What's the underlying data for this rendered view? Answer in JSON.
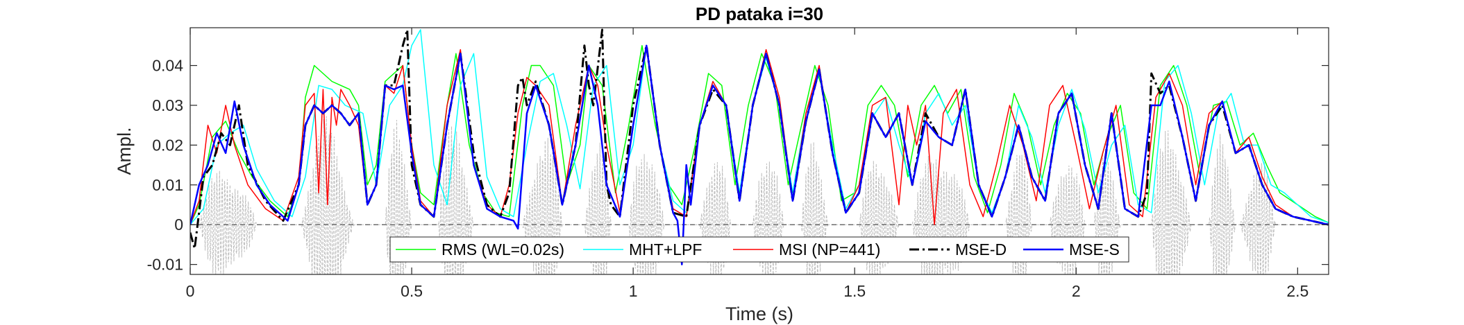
{
  "chart_data": {
    "type": "line",
    "title": "PD pataka i=30",
    "xlabel": "Time (s)",
    "ylabel": "Ampl.",
    "xlim": [
      0,
      2.57
    ],
    "ylim": [
      -0.0125,
      0.0495
    ],
    "xticks": [
      0,
      0.5,
      1,
      1.5,
      2,
      2.5
    ],
    "xtick_labels": [
      "0",
      "0.5",
      "1",
      "1.5",
      "2",
      "2.5"
    ],
    "yticks": [
      -0.01,
      0,
      0.01,
      0.02,
      0.03,
      0.04
    ],
    "ytick_labels": [
      "-0.01",
      "0",
      "0.01",
      "0.02",
      "0.03",
      "0.04"
    ],
    "grid": false,
    "legend_position": "bottom-center",
    "background_signal": {
      "name": "speech waveform",
      "color": "#bdbdbd",
      "style": "dashed",
      "note_segments": "syllable bursts oscillating around zero"
    },
    "series": [
      {
        "name": "RMS (WL=0.02s)",
        "color": "#00ff00",
        "style": "solid",
        "width": 1.5,
        "x": [
          0,
          0.02,
          0.05,
          0.08,
          0.11,
          0.14,
          0.18,
          0.22,
          0.245,
          0.26,
          0.28,
          0.3,
          0.32,
          0.34,
          0.36,
          0.38,
          0.4,
          0.42,
          0.44,
          0.46,
          0.48,
          0.5,
          0.52,
          0.55,
          0.58,
          0.6,
          0.63,
          0.66,
          0.69,
          0.72,
          0.75,
          0.77,
          0.79,
          0.82,
          0.85,
          0.88,
          0.9,
          0.93,
          0.96,
          0.99,
          1.02,
          1.05,
          1.08,
          1.11,
          1.14,
          1.17,
          1.2,
          1.23,
          1.26,
          1.29,
          1.32,
          1.35,
          1.38,
          1.41,
          1.44,
          1.47,
          1.5,
          1.53,
          1.56,
          1.59,
          1.62,
          1.65,
          1.68,
          1.71,
          1.74,
          1.77,
          1.8,
          1.83,
          1.86,
          1.89,
          1.92,
          1.95,
          1.98,
          2.01,
          2.04,
          2.07,
          2.1,
          2.13,
          2.16,
          2.19,
          2.22,
          2.25,
          2.28,
          2.31,
          2.34,
          2.37,
          2.4,
          2.43,
          2.46,
          2.5,
          2.54,
          2.57
        ],
        "y": [
          0,
          0.005,
          0.022,
          0.026,
          0.018,
          0.012,
          0.006,
          0.002,
          0.01,
          0.032,
          0.04,
          0.038,
          0.036,
          0.035,
          0.034,
          0.03,
          0.01,
          0.015,
          0.036,
          0.038,
          0.04,
          0.02,
          0.008,
          0.005,
          0.03,
          0.043,
          0.02,
          0.008,
          0.003,
          0.002,
          0.03,
          0.04,
          0.04,
          0.035,
          0.01,
          0.02,
          0.04,
          0.035,
          0.008,
          0.025,
          0.045,
          0.025,
          0.01,
          0.005,
          0.02,
          0.038,
          0.035,
          0.01,
          0.03,
          0.043,
          0.035,
          0.01,
          0.025,
          0.04,
          0.03,
          0.006,
          0.008,
          0.03,
          0.035,
          0.03,
          0.012,
          0.03,
          0.035,
          0.028,
          0.034,
          0.012,
          0.003,
          0.015,
          0.033,
          0.025,
          0.01,
          0.025,
          0.033,
          0.028,
          0.01,
          0.022,
          0.03,
          0.008,
          0.004,
          0.035,
          0.04,
          0.03,
          0.012,
          0.03,
          0.031,
          0.02,
          0.023,
          0.015,
          0.008,
          0.005,
          0.002,
          0.0005
        ]
      },
      {
        "name": "MHT+LPF",
        "color": "#00ffff",
        "style": "solid",
        "width": 1.5,
        "x": [
          0,
          0.03,
          0.06,
          0.09,
          0.12,
          0.15,
          0.19,
          0.23,
          0.26,
          0.29,
          0.32,
          0.35,
          0.37,
          0.39,
          0.42,
          0.45,
          0.48,
          0.5,
          0.52,
          0.55,
          0.58,
          0.61,
          0.64,
          0.67,
          0.7,
          0.73,
          0.76,
          0.79,
          0.82,
          0.85,
          0.88,
          0.91,
          0.94,
          0.97,
          1,
          1.03,
          1.06,
          1.09,
          1.12,
          1.15,
          1.18,
          1.21,
          1.24,
          1.27,
          1.3,
          1.33,
          1.36,
          1.39,
          1.42,
          1.45,
          1.48,
          1.51,
          1.54,
          1.57,
          1.6,
          1.63,
          1.66,
          1.69,
          1.72,
          1.75,
          1.78,
          1.81,
          1.84,
          1.87,
          1.9,
          1.93,
          1.96,
          1.99,
          2.02,
          2.05,
          2.08,
          2.11,
          2.14,
          2.17,
          2.2,
          2.23,
          2.26,
          2.29,
          2.32,
          2.35,
          2.38,
          2.41,
          2.44,
          2.47,
          2.5,
          2.53,
          2.57
        ],
        "y": [
          0,
          0.004,
          0.02,
          0.023,
          0.025,
          0.014,
          0.006,
          0.002,
          0.012,
          0.035,
          0.034,
          0.03,
          0.029,
          0.028,
          0.01,
          0.03,
          0.035,
          0.045,
          0.049,
          0.015,
          0.005,
          0.035,
          0.043,
          0.012,
          0.004,
          0.002,
          0.02,
          0.036,
          0.038,
          0.025,
          0.009,
          0.035,
          0.04,
          0.01,
          0.02,
          0.045,
          0.02,
          0.006,
          0.003,
          0.025,
          0.036,
          0.03,
          0.008,
          0.03,
          0.042,
          0.03,
          0.008,
          0.028,
          0.038,
          0.02,
          0.004,
          0.01,
          0.027,
          0.032,
          0.02,
          0.01,
          0.028,
          0.033,
          0.025,
          0.03,
          0.01,
          0.003,
          0.012,
          0.03,
          0.022,
          0.008,
          0.025,
          0.034,
          0.024,
          0.008,
          0.02,
          0.025,
          0.005,
          0.003,
          0.036,
          0.04,
          0.028,
          0.01,
          0.028,
          0.033,
          0.02,
          0.02,
          0.01,
          0.008,
          0.005,
          0.002,
          0.0005
        ]
      },
      {
        "name": "MSI (NP=441)",
        "color": "#ff0000",
        "style": "solid",
        "width": 1.5,
        "x": [
          0,
          0.02,
          0.04,
          0.06,
          0.08,
          0.1,
          0.13,
          0.17,
          0.21,
          0.245,
          0.26,
          0.28,
          0.29,
          0.3,
          0.31,
          0.32,
          0.33,
          0.34,
          0.36,
          0.38,
          0.4,
          0.42,
          0.44,
          0.46,
          0.48,
          0.5,
          0.52,
          0.55,
          0.58,
          0.61,
          0.64,
          0.67,
          0.7,
          0.72,
          0.74,
          0.76,
          0.78,
          0.81,
          0.84,
          0.87,
          0.9,
          0.92,
          0.94,
          0.97,
          1,
          1.03,
          1.06,
          1.09,
          1.12,
          1.15,
          1.18,
          1.21,
          1.24,
          1.27,
          1.3,
          1.33,
          1.36,
          1.39,
          1.42,
          1.45,
          1.48,
          1.51,
          1.54,
          1.57,
          1.6,
          1.62,
          1.64,
          1.66,
          1.68,
          1.7,
          1.73,
          1.76,
          1.79,
          1.82,
          1.85,
          1.88,
          1.91,
          1.94,
          1.97,
          2,
          2.03,
          2.06,
          2.09,
          2.12,
          2.15,
          2.18,
          2.21,
          2.24,
          2.27,
          2.3,
          2.33,
          2.36,
          2.39,
          2.42,
          2.45,
          2.49,
          2.53,
          2.57
        ],
        "y": [
          0,
          0.006,
          0.025,
          0.018,
          0.03,
          0.02,
          0.01,
          0.004,
          0.001,
          0.012,
          0.03,
          0.033,
          0.008,
          0.034,
          0.005,
          0.032,
          0.025,
          0.034,
          0.03,
          0.025,
          0.005,
          0.01,
          0.035,
          0.033,
          0.04,
          0.02,
          0.006,
          0.002,
          0.03,
          0.044,
          0.015,
          0.005,
          0.002,
          0.01,
          0.028,
          0.037,
          0.035,
          0.03,
          0.005,
          0.025,
          0.04,
          0.035,
          0.02,
          0.003,
          0.025,
          0.045,
          0.02,
          0.004,
          0.002,
          0.025,
          0.036,
          0.03,
          0.006,
          0.03,
          0.044,
          0.032,
          0.006,
          0.028,
          0.04,
          0.018,
          0.003,
          0.01,
          0.03,
          0.032,
          0.005,
          0.03,
          0.02,
          0.03,
          0,
          0.028,
          0.034,
          0.01,
          0.002,
          0.015,
          0.03,
          0.02,
          0.006,
          0.03,
          0.035,
          0.02,
          0.004,
          0.018,
          0.03,
          0.005,
          0.002,
          0.032,
          0.038,
          0.03,
          0.01,
          0.028,
          0.031,
          0.018,
          0.022,
          0.012,
          0.005,
          0.002,
          0.001,
          0
        ]
      },
      {
        "name": "MSE-D",
        "color": "#000000",
        "style": "dashdot",
        "width": 3,
        "x": [
          0,
          0.01,
          0.03,
          0.05,
          0.07,
          0.09,
          0.11,
          0.13,
          0.17,
          0.21,
          0.245,
          0.26,
          0.28,
          0.3,
          0.32,
          0.34,
          0.36,
          0.38,
          0.4,
          0.42,
          0.44,
          0.46,
          0.48,
          0.49,
          0.5,
          0.52,
          0.55,
          0.58,
          0.61,
          0.64,
          0.67,
          0.7,
          0.72,
          0.74,
          0.75,
          0.76,
          0.78,
          0.81,
          0.84,
          0.87,
          0.89,
          0.9,
          0.91,
          0.93,
          0.94,
          0.95,
          0.97,
          1,
          1.03,
          1.06,
          1.09,
          1.12,
          1.15,
          1.18,
          1.21,
          1.24,
          1.27,
          1.3,
          1.33,
          1.36,
          1.39,
          1.42,
          1.45,
          1.48,
          1.51,
          1.54,
          1.57,
          1.6,
          1.63,
          1.66,
          1.69,
          1.72,
          1.75,
          1.78,
          1.81,
          1.84,
          1.87,
          1.9,
          1.93,
          1.96,
          1.99,
          2.02,
          2.05,
          2.08,
          2.11,
          2.14,
          2.16,
          2.17,
          2.19,
          2.21,
          2.24,
          2.27,
          2.3,
          2.33,
          2.36,
          2.39,
          2.42,
          2.45,
          2.49,
          2.53,
          2.57
        ],
        "y": [
          -0.002,
          -0.006,
          0.012,
          0.015,
          0.023,
          0.02,
          0.03,
          0.015,
          0.006,
          0.001,
          0.01,
          0.025,
          0.03,
          0.028,
          0.03,
          0.028,
          0.025,
          0.028,
          0.005,
          0.01,
          0.035,
          0.035,
          0.045,
          0.049,
          0.015,
          0.005,
          0.002,
          0.025,
          0.043,
          0.018,
          0.005,
          0.002,
          0.008,
          0.035,
          0.037,
          0.03,
          0.036,
          0.025,
          0.005,
          0.02,
          0.045,
          0.035,
          0.03,
          0.049,
          0.01,
          0.005,
          0.002,
          0.03,
          0.045,
          0.02,
          0.003,
          0.002,
          0.025,
          0.034,
          0.03,
          0.006,
          0.03,
          0.043,
          0.03,
          0.006,
          0.026,
          0.039,
          0.018,
          0.003,
          0.008,
          0.028,
          0.022,
          0.028,
          0.01,
          0.028,
          0.022,
          0.02,
          0.034,
          0.01,
          0.002,
          0.012,
          0.025,
          0.012,
          0.006,
          0.028,
          0.033,
          0.015,
          0.004,
          0.028,
          0.004,
          0.002,
          0.008,
          0.038,
          0.033,
          0.035,
          0.022,
          0.006,
          0.025,
          0.03,
          0.018,
          0.02,
          0.01,
          0.004,
          0.002,
          0.001,
          0
        ]
      },
      {
        "name": "MSE-S",
        "color": "#0000ff",
        "style": "solid",
        "width": 2.5,
        "x": [
          0,
          0.02,
          0.04,
          0.06,
          0.08,
          0.1,
          0.12,
          0.15,
          0.18,
          0.22,
          0.245,
          0.26,
          0.28,
          0.3,
          0.32,
          0.34,
          0.36,
          0.38,
          0.4,
          0.42,
          0.44,
          0.46,
          0.48,
          0.5,
          0.52,
          0.55,
          0.58,
          0.61,
          0.64,
          0.67,
          0.7,
          0.73,
          0.74,
          0.76,
          0.78,
          0.81,
          0.84,
          0.87,
          0.9,
          0.92,
          0.94,
          0.97,
          1,
          1.03,
          1.06,
          1.09,
          1.1,
          1.11,
          1.12,
          1.13,
          1.15,
          1.18,
          1.21,
          1.24,
          1.27,
          1.3,
          1.33,
          1.36,
          1.39,
          1.42,
          1.45,
          1.48,
          1.51,
          1.54,
          1.57,
          1.6,
          1.63,
          1.66,
          1.69,
          1.72,
          1.75,
          1.78,
          1.81,
          1.84,
          1.87,
          1.9,
          1.93,
          1.96,
          1.99,
          2.02,
          2.05,
          2.08,
          2.11,
          2.14,
          2.17,
          2.19,
          2.21,
          2.24,
          2.27,
          2.3,
          2.33,
          2.36,
          2.39,
          2.42,
          2.45,
          2.49,
          2.53,
          2.57
        ],
        "y": [
          0,
          0.01,
          0.015,
          0.023,
          0.018,
          0.031,
          0.02,
          0.01,
          0.005,
          0.001,
          0.01,
          0.025,
          0.03,
          0.028,
          0.03,
          0.028,
          0.025,
          0.028,
          0.005,
          0.01,
          0.035,
          0.034,
          0.035,
          0.018,
          0.005,
          0.002,
          0.025,
          0.043,
          0.015,
          0.004,
          0.002,
          0.001,
          -0.001,
          0.028,
          0.035,
          0.025,
          0.005,
          0.02,
          0.04,
          0.03,
          0.01,
          0.002,
          0.025,
          0.045,
          0.02,
          0.003,
          0.001,
          -0.01,
          0.015,
          0.005,
          0.025,
          0.035,
          0.03,
          0.006,
          0.03,
          0.043,
          0.03,
          0.006,
          0.026,
          0.039,
          0.018,
          0.003,
          0.008,
          0.028,
          0.022,
          0.028,
          0.01,
          0.026,
          0.022,
          0.02,
          0.034,
          0.01,
          0.002,
          0.012,
          0.025,
          0.012,
          0.006,
          0.028,
          0.033,
          0.015,
          0.004,
          0.028,
          0.004,
          0.002,
          0.03,
          0.03,
          0.036,
          0.022,
          0.006,
          0.025,
          0.031,
          0.018,
          0.02,
          0.01,
          0.004,
          0.002,
          0.001,
          0
        ]
      }
    ]
  }
}
